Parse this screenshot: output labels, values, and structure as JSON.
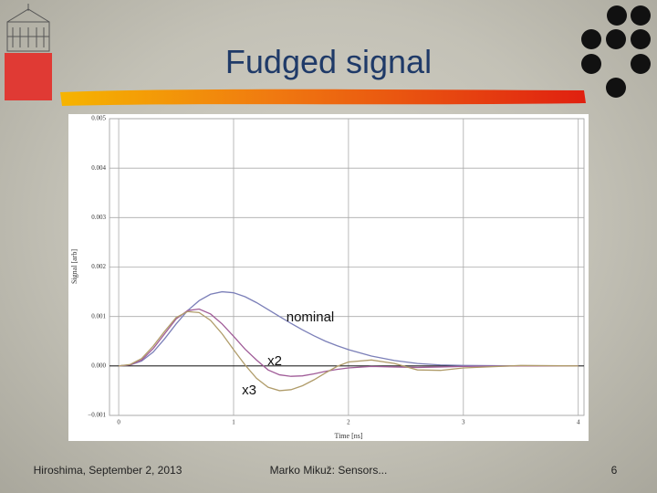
{
  "slide": {
    "title": "Fudged signal",
    "footer_left": "Hiroshima, September 2, 2013",
    "footer_center": "Marko Mikuž: Sensors...",
    "page_number": "6"
  },
  "chart_data": {
    "type": "line",
    "x_label": "Time [ns]",
    "y_label": "Signal [arb]",
    "x": [
      0,
      0.1,
      0.2,
      0.3,
      0.4,
      0.5,
      0.6,
      0.7,
      0.8,
      0.9,
      1.0,
      1.1,
      1.2,
      1.3,
      1.4,
      1.5,
      1.6,
      1.7,
      1.8,
      1.9,
      2.0,
      2.2,
      2.4,
      2.6,
      2.8,
      3.0,
      3.5,
      4.0
    ],
    "series": [
      {
        "name": "nominal",
        "color": "#7b7fb8",
        "values": [
          0,
          2e-05,
          0.0001,
          0.00028,
          0.00055,
          0.00085,
          0.00112,
          0.00132,
          0.00145,
          0.0015,
          0.00148,
          0.0014,
          0.00128,
          0.00114,
          0.001,
          0.00086,
          0.00073,
          0.00061,
          0.0005,
          0.00041,
          0.00033,
          0.0002,
          0.00011,
          5e-05,
          2e-05,
          1e-05,
          0,
          0
        ]
      },
      {
        "name": "x2",
        "color": "#a05c98",
        "values": [
          0,
          2e-05,
          0.00012,
          0.00035,
          0.00065,
          0.00095,
          0.00112,
          0.00115,
          0.00105,
          0.00085,
          0.0006,
          0.00034,
          0.00012,
          -8e-05,
          -0.00018,
          -0.00021,
          -0.0002,
          -0.00016,
          -0.00011,
          -7e-05,
          -4e-05,
          -1e-05,
          -2e-05,
          -3e-05,
          -2e-05,
          -1e-05,
          0,
          0
        ]
      },
      {
        "name": "x3",
        "color": "#b09c6a",
        "values": [
          0,
          3e-05,
          0.00015,
          0.0004,
          0.0007,
          0.00098,
          0.0011,
          0.00108,
          0.00092,
          0.00065,
          0.00033,
          2e-05,
          -0.00025,
          -0.00043,
          -0.0005,
          -0.00048,
          -0.0004,
          -0.00028,
          -0.00014,
          -1e-05,
          8e-05,
          0.00012,
          5e-05,
          -8e-05,
          -9e-05,
          -4e-05,
          1e-05,
          0
        ]
      }
    ],
    "xlim": [
      -0.08,
      4.05
    ],
    "ylim": [
      -0.001,
      0.005
    ],
    "xticks": [
      0,
      1,
      2,
      3,
      4
    ],
    "yticks": [
      {
        "value": -0.001,
        "label": "−0.001"
      },
      {
        "value": 0,
        "label": "0.000"
      },
      0.001,
      0.002,
      0.003,
      0.004,
      0.005
    ],
    "grid": true
  }
}
